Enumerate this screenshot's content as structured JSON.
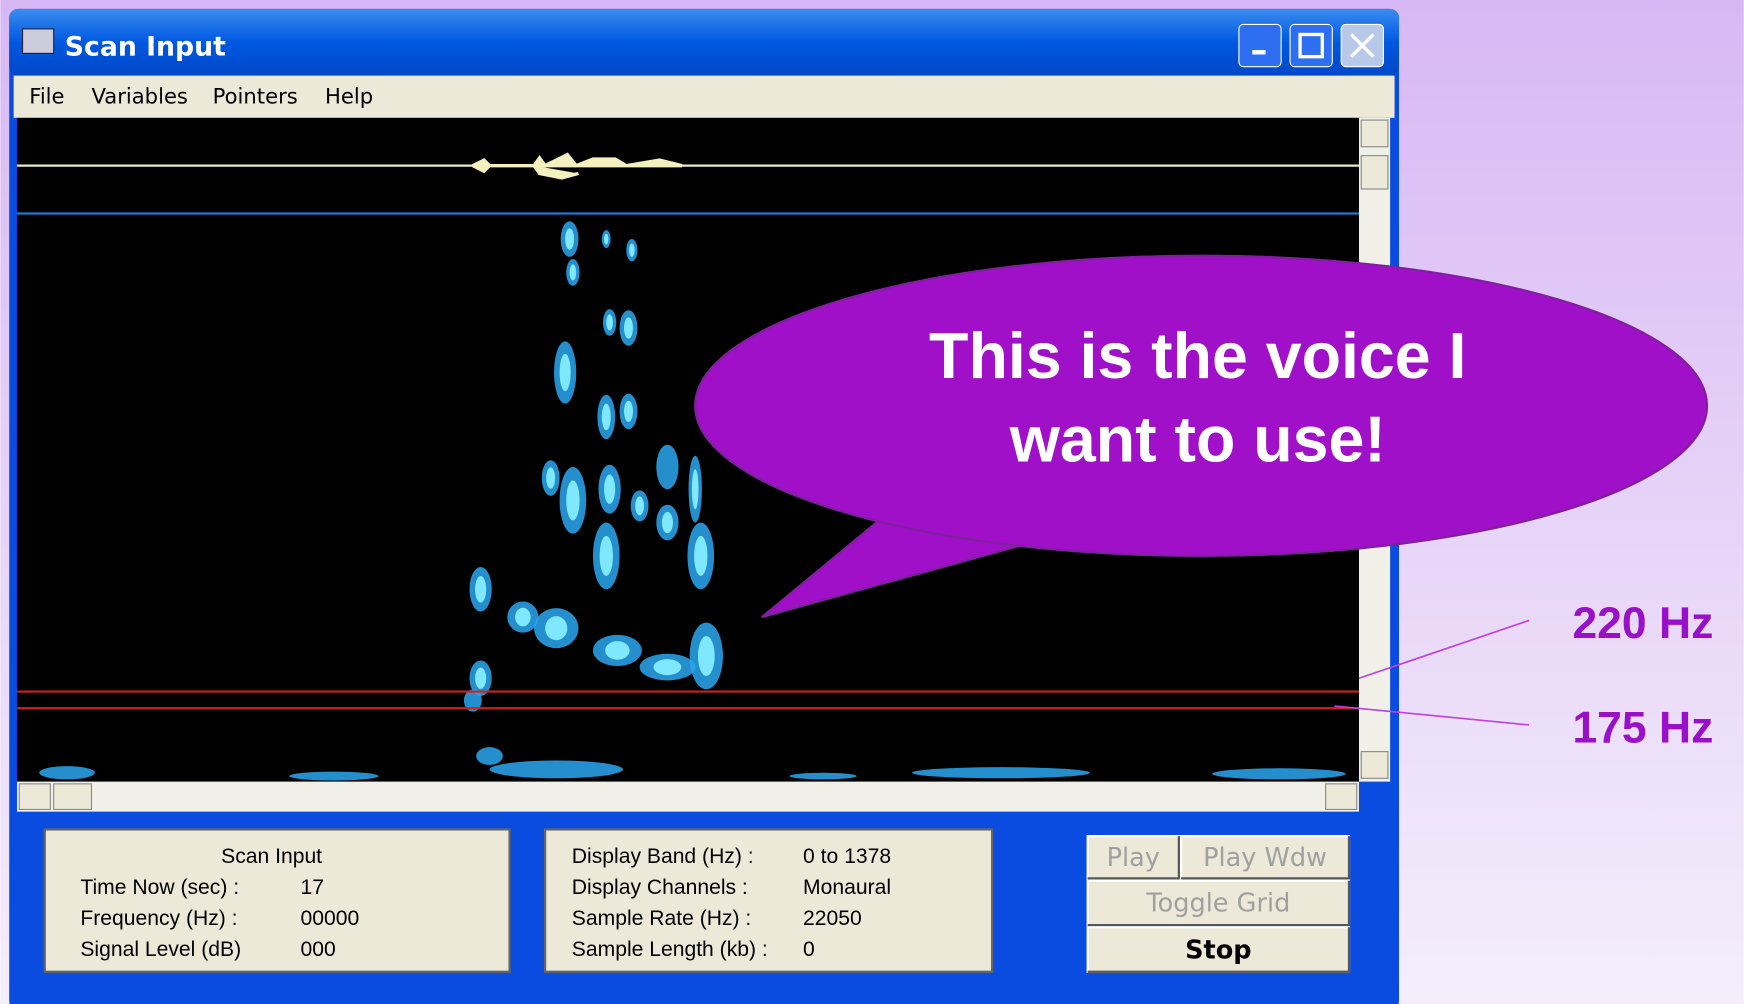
{
  "window": {
    "title": "Scan Input",
    "menu": [
      "File",
      "Variables",
      "Pointers",
      "Help"
    ]
  },
  "status_panel": {
    "heading": "Scan Input",
    "rows": [
      [
        "Time Now (sec) :",
        "17"
      ],
      [
        "Frequency (Hz) :",
        "00000"
      ],
      [
        "Signal Level (dB)",
        "000"
      ]
    ]
  },
  "display_panel": {
    "rows": [
      [
        "Display Band (Hz) :",
        "0 to 1378"
      ],
      [
        "Display Channels :",
        "Monaural"
      ],
      [
        "Sample Rate (Hz) :",
        "22050"
      ],
      [
        "Sample Length (kb) :",
        "0"
      ]
    ]
  },
  "buttons": [
    "Play",
    "Play Wdw",
    "Toggle Grid",
    "Stop"
  ],
  "callout": [
    "This is the voice I",
    "want to use!"
  ],
  "annotations": [
    "220 Hz",
    "175 Hz"
  ]
}
